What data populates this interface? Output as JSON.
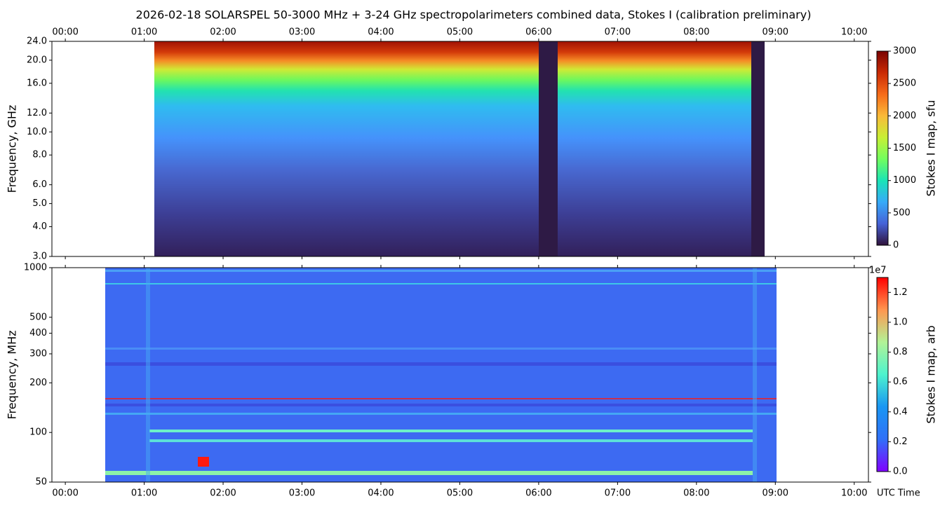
{
  "chart_data": [
    {
      "type": "heatmap",
      "title": "2026-02-18  SOLARSPEL  50-3000 MHz  +  3-24 GHz  spectropolarimeters combined data,  Stokes I  (calibration preliminary)",
      "ylabel": "Frequency, GHz",
      "log_y": true,
      "ylim": [
        3,
        24
      ],
      "yticks": [
        {
          "value": 3,
          "label": "3.0"
        },
        {
          "value": 4,
          "label": "4.0"
        },
        {
          "value": 5,
          "label": "5.0"
        },
        {
          "value": 6,
          "label": "6.0"
        },
        {
          "value": 8,
          "label": "8.0"
        },
        {
          "value": 10,
          "label": "10.0"
        },
        {
          "value": 12,
          "label": "12.0"
        },
        {
          "value": 16,
          "label": "16.0"
        },
        {
          "value": 20,
          "label": "20.0"
        },
        {
          "value": 24,
          "label": "24.0"
        }
      ],
      "xlim": [
        -0.17,
        10.18
      ],
      "xticks": [
        {
          "value": 0,
          "label": "00:00"
        },
        {
          "value": 1,
          "label": "01:00"
        },
        {
          "value": 2,
          "label": "02:00"
        },
        {
          "value": 3,
          "label": "03:00"
        },
        {
          "value": 4,
          "label": "04:00"
        },
        {
          "value": 5,
          "label": "05:00"
        },
        {
          "value": 6,
          "label": "06:00"
        },
        {
          "value": 7,
          "label": "07:00"
        },
        {
          "value": 8,
          "label": "08:00"
        },
        {
          "value": 9,
          "label": "09:00"
        },
        {
          "value": 10,
          "label": "10:00"
        }
      ],
      "xtick_side": "top",
      "colorbar": {
        "label": "Stokes I map, sfu",
        "lim": [
          0,
          3000
        ],
        "ticks": [
          0,
          500,
          1000,
          1500,
          2000,
          2500,
          3000
        ],
        "colormap": [
          "#30123b",
          "#4662d7",
          "#36aaf9",
          "#1ae4b6",
          "#72fe5e",
          "#c8ef34",
          "#faba39",
          "#f66b19",
          "#ca2a04",
          "#7a0403"
        ]
      }
    },
    {
      "type": "heatmap",
      "ylabel": "Frequency, MHz",
      "xlabel": "UTC Time",
      "log_y": true,
      "ylim": [
        50,
        1000
      ],
      "yticks": [
        50,
        100,
        200,
        300,
        400,
        500,
        1000
      ],
      "xlim": [
        -0.17,
        10.18
      ],
      "xticks": [
        {
          "value": 0,
          "label": "00:00"
        },
        {
          "value": 1,
          "label": "01:00"
        },
        {
          "value": 2,
          "label": "02:00"
        },
        {
          "value": 3,
          "label": "03:00"
        },
        {
          "value": 4,
          "label": "04:00"
        },
        {
          "value": 5,
          "label": "05:00"
        },
        {
          "value": 6,
          "label": "06:00"
        },
        {
          "value": 7,
          "label": "07:00"
        },
        {
          "value": 8,
          "label": "08:00"
        },
        {
          "value": 9,
          "label": "09:00"
        },
        {
          "value": 10,
          "label": "10:00"
        }
      ],
      "xtick_side": "bottom",
      "colorbar": {
        "label": "Stokes I map, arb",
        "lim": [
          0,
          13000000
        ],
        "offset_label": "1e7",
        "ticks": [
          {
            "value": 0,
            "label": "0.0"
          },
          {
            "value": 2000000,
            "label": "0.2"
          },
          {
            "value": 4000000,
            "label": "0.4"
          },
          {
            "value": 6000000,
            "label": "0.6"
          },
          {
            "value": 8000000,
            "label": "0.8"
          },
          {
            "value": 10000000,
            "label": "1.0"
          },
          {
            "value": 12000000,
            "label": "1.2"
          }
        ],
        "colormap": [
          "#8000ff",
          "#3070f8",
          "#1996f3",
          "#4df3ce",
          "#b2f396",
          "#ff964f",
          "#ff0000"
        ]
      }
    }
  ]
}
